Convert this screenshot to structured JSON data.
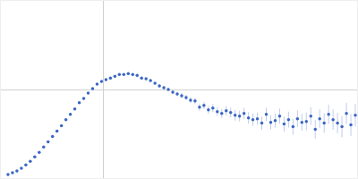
{
  "chart_data": {
    "type": "scatter",
    "x": [
      8,
      13,
      18,
      23,
      28,
      33,
      38,
      43,
      48,
      53,
      58,
      63,
      68,
      73,
      78,
      83,
      88,
      93,
      98,
      103,
      108,
      113,
      118,
      123,
      128,
      133,
      138,
      143,
      148,
      153,
      158,
      163,
      168,
      173,
      178,
      183,
      188,
      193,
      198,
      203,
      208,
      213,
      218,
      223,
      228,
      233,
      238,
      243,
      248,
      253,
      258,
      263,
      268,
      273,
      278,
      283,
      288,
      293,
      298,
      303,
      308,
      313,
      318,
      323,
      328,
      333,
      338,
      343,
      348,
      353,
      358,
      363,
      368,
      373,
      378,
      383,
      388,
      393,
      398
    ],
    "values": [
      4,
      6,
      8,
      11,
      15,
      19,
      24,
      29,
      35,
      41,
      47,
      53,
      59,
      66,
      72,
      78,
      85,
      90,
      96,
      101,
      106,
      109,
      111,
      113,
      115,
      117,
      117,
      118,
      117,
      116,
      113,
      112,
      110,
      107,
      104,
      102,
      100,
      97,
      95,
      93,
      91,
      88,
      87,
      80,
      82,
      77,
      79,
      75,
      73,
      76,
      74,
      71,
      70,
      73,
      68,
      66,
      67,
      62,
      72,
      63,
      65,
      70,
      61,
      66,
      58,
      67,
      63,
      64,
      70,
      55,
      67,
      62,
      72,
      66,
      62,
      58,
      73,
      60,
      71
    ],
    "errors": [
      0.5,
      0.5,
      0.5,
      0.5,
      0.5,
      0.5,
      0.5,
      0.5,
      0.5,
      0.5,
      0.5,
      0.5,
      0.5,
      0.5,
      0.5,
      0.5,
      0.5,
      0.5,
      0.5,
      0.5,
      0.8,
      0.8,
      0.8,
      1,
      1,
      1,
      1,
      1,
      1.2,
      1.2,
      1.2,
      1.5,
      1.5,
      1.5,
      2,
      2,
      2,
      2.5,
      2.5,
      3,
      3,
      3.5,
      3.5,
      4,
      4,
      4.5,
      4.5,
      5,
      5,
      5.5,
      5.5,
      6,
      6,
      6.5,
      6.5,
      7,
      7,
      7.5,
      7.5,
      8,
      8,
      8.5,
      8.5,
      9,
      9,
      9.5,
      9.5,
      10,
      10,
      10.5,
      10.5,
      11,
      11,
      11.5,
      11.5,
      12,
      12,
      12.5,
      12.5
    ],
    "color": "#3a66c4",
    "marker": "circle",
    "xlim": [
      0,
      400
    ],
    "ylim": [
      0,
      200
    ],
    "xticks": [
      115
    ],
    "yticks": [
      100
    ],
    "grid": true,
    "tick_labels": false
  }
}
